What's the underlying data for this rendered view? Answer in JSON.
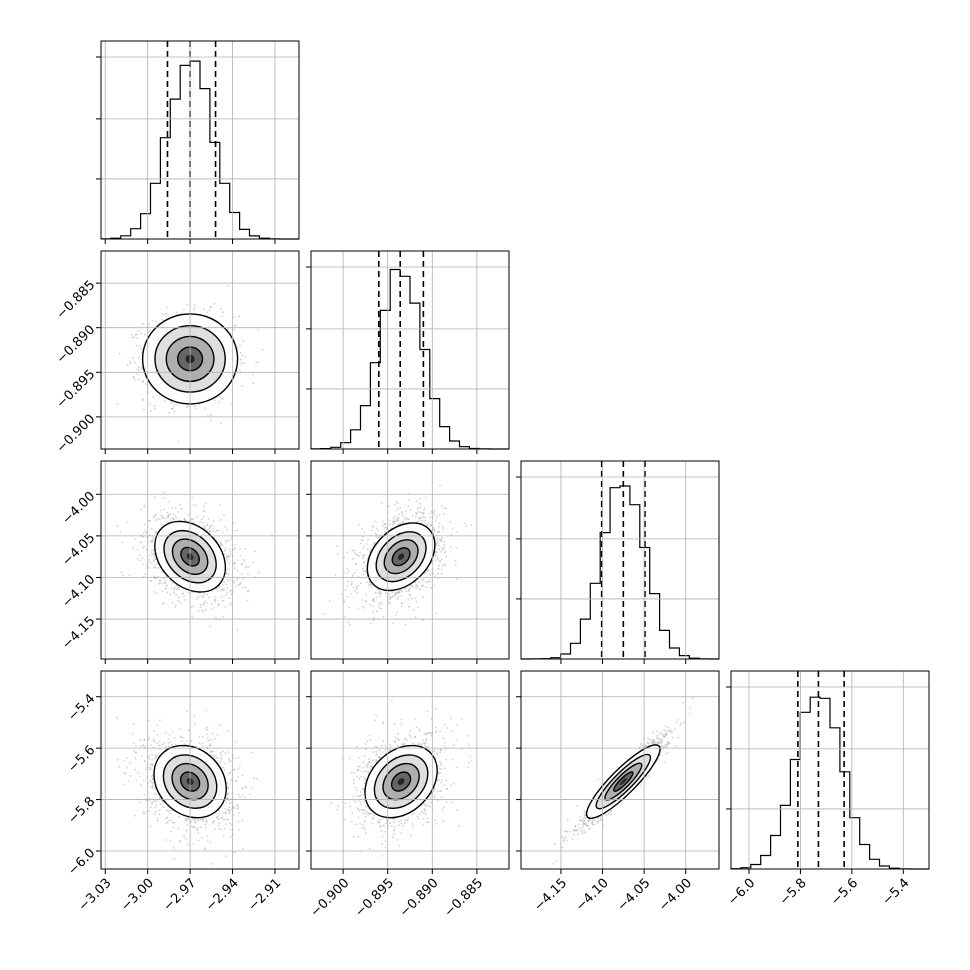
{
  "chart_data": {
    "type": "corner",
    "colors": {
      "ink": "#000000",
      "grid": "#b0b0b0",
      "scatter": "#b4b4b4"
    },
    "parameters": [
      {
        "tick_labels": [
          "−3.03",
          "−3.00",
          "−2.97",
          "−2.94",
          "−2.91"
        ],
        "ticks": [
          -3.03,
          -3.0,
          -2.97,
          -2.94,
          -2.91
        ],
        "range": [
          -3.033,
          -2.893
        ],
        "mean": -2.97,
        "std": 0.016,
        "quantiles": [
          -2.986,
          -2.97,
          -2.952
        ]
      },
      {
        "tick_labels": [
          "−0.900",
          "−0.895",
          "−0.890",
          "−0.885"
        ],
        "ticks": [
          -0.9,
          -0.895,
          -0.89,
          -0.885
        ],
        "range": [
          -0.9036,
          -0.8814
        ],
        "mean": -0.8935,
        "std": 0.0024,
        "quantiles": [
          -0.896,
          -0.8936,
          -0.891
        ]
      },
      {
        "tick_labels": [
          "−4.15",
          "−4.10",
          "−4.05",
          "−4.00"
        ],
        "ticks": [
          -4.15,
          -4.1,
          -4.05,
          -4.0
        ],
        "range": [
          -4.198,
          -3.96
        ],
        "mean": -4.075,
        "std": 0.026,
        "quantiles": [
          -4.101,
          -4.075,
          -4.049
        ]
      },
      {
        "tick_labels": [
          "−6.0",
          "−5.8",
          "−5.6",
          "−5.4"
        ],
        "ticks": [
          -6.0,
          -5.8,
          -5.6,
          -5.4
        ],
        "range": [
          -6.07,
          -5.3
        ],
        "mean": -5.73,
        "std": 0.09,
        "quantiles": [
          -5.81,
          -5.73,
          -5.63
        ]
      }
    ],
    "correlations": [
      {
        "row": 1,
        "col": 0,
        "r": 0.0
      },
      {
        "row": 2,
        "col": 0,
        "r": -0.3
      },
      {
        "row": 2,
        "col": 1,
        "r": 0.35
      },
      {
        "row": 3,
        "col": 0,
        "r": -0.2
      },
      {
        "row": 3,
        "col": 1,
        "r": 0.3
      },
      {
        "row": 3,
        "col": 2,
        "r": 0.95
      }
    ],
    "histogram_bins": 20,
    "grid": true,
    "quantile_lines": "dashed",
    "contours": "filled density with 4 levels and scatter outliers"
  }
}
